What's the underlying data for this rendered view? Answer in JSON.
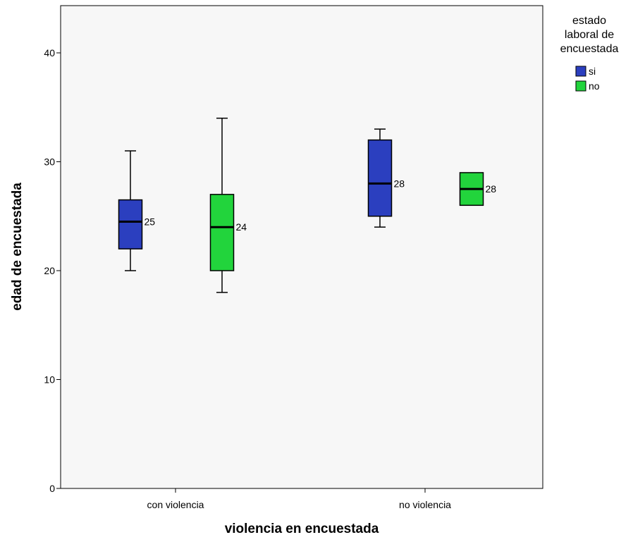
{
  "chart_data": {
    "type": "boxplot",
    "xlabel": "violencia en encuestada",
    "ylabel": "edad de encuestada",
    "ylim": [
      0,
      44
    ],
    "yticks": [
      0,
      10,
      20,
      30,
      40
    ],
    "categories": [
      "con violencia",
      "no violencia"
    ],
    "grid": false,
    "legend": {
      "title": [
        "estado",
        "laboral de",
        "encuestada"
      ],
      "placement": "right",
      "entries": [
        {
          "label": "si",
          "color": "#2b3fbf"
        },
        {
          "label": "no",
          "color": "#22d43c"
        }
      ]
    },
    "series": [
      {
        "name": "si",
        "color": "#2b3fbf",
        "boxes": [
          {
            "category": "con violencia",
            "min": 20,
            "q1": 22,
            "median": 24.5,
            "q3": 26.5,
            "max": 31,
            "label": "25"
          },
          {
            "category": "no violencia",
            "min": 24,
            "q1": 25,
            "median": 28,
            "q3": 32,
            "max": 33,
            "label": "28"
          }
        ]
      },
      {
        "name": "no",
        "color": "#22d43c",
        "boxes": [
          {
            "category": "con violencia",
            "min": 18,
            "q1": 20,
            "median": 24,
            "q3": 27,
            "max": 34,
            "label": "24"
          },
          {
            "category": "no violencia",
            "min": 26,
            "q1": 26,
            "median": 27.5,
            "q3": 29,
            "max": 29,
            "label": "28"
          }
        ]
      }
    ]
  }
}
